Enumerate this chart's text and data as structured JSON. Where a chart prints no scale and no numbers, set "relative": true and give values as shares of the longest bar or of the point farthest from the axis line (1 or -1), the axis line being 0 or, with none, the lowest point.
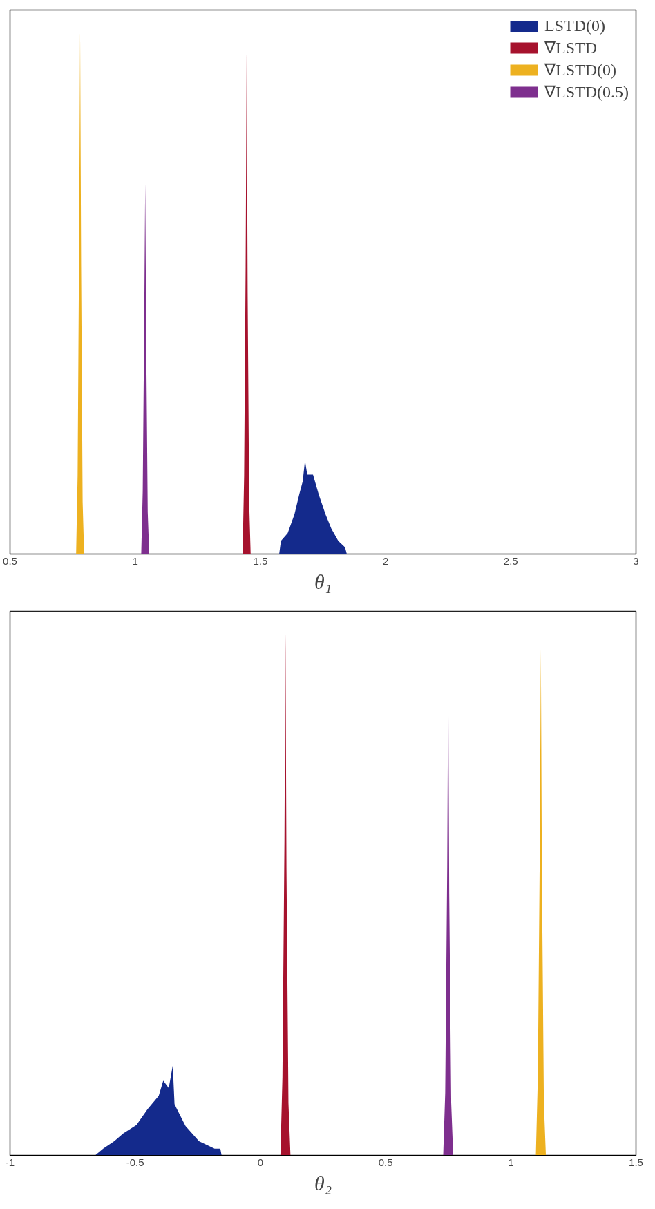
{
  "chart_data": [
    {
      "type": "area",
      "relative": true,
      "xlabel": "θ₁",
      "xlim": [
        0.5,
        3
      ],
      "xticks": [
        0.5,
        1,
        1.5,
        2,
        2.5,
        3
      ],
      "tick_labels": "x",
      "legend": "top right",
      "grid": false,
      "series": [
        {
          "name": "LSTD(0)",
          "color": "#142a8c",
          "x": [
            1.575,
            1.582,
            1.609,
            1.636,
            1.655,
            1.669,
            1.678,
            1.687,
            1.71,
            1.733,
            1.76,
            1.783,
            1.811,
            1.838,
            1.845
          ],
          "values": [
            0,
            0.025,
            0.04,
            0.076,
            0.114,
            0.139,
            0.179,
            0.152,
            0.152,
            0.114,
            0.076,
            0.049,
            0.025,
            0.013,
            0
          ]
        },
        {
          "name": "∇LSTD",
          "color": "#a6122d",
          "x": [
            1.429,
            1.435,
            1.441,
            1.445,
            1.449,
            1.455,
            1.461
          ],
          "values": [
            0,
            0.15,
            0.55,
            0.96,
            0.5,
            0.1,
            0
          ]
        },
        {
          "name": "∇LSTD(0)",
          "color": "#edb120",
          "x": [
            0.764,
            0.77,
            0.776,
            0.78,
            0.784,
            0.79,
            0.796
          ],
          "values": [
            0,
            0.15,
            0.6,
            1,
            0.55,
            0.1,
            0
          ]
        },
        {
          "name": "∇LSTD(0.5)",
          "color": "#7e2f8e",
          "x": [
            1.024,
            1.03,
            1.036,
            1.04,
            1.044,
            1.05,
            1.056
          ],
          "values": [
            0,
            0.12,
            0.45,
            0.71,
            0.4,
            0.08,
            0
          ]
        }
      ]
    },
    {
      "type": "area",
      "relative": true,
      "xlabel": "θ₂",
      "xlim": [
        -1,
        1.5
      ],
      "xticks": [
        -1,
        -0.5,
        0,
        0.5,
        1,
        1.5
      ],
      "tick_labels": "x",
      "grid": false,
      "series": [
        {
          "color": "#142a8c",
          "x": [
            -0.66,
            -0.628,
            -0.584,
            -0.548,
            -0.495,
            -0.45,
            -0.406,
            -0.388,
            -0.366,
            -0.35,
            -0.343,
            -0.299,
            -0.245,
            -0.183,
            -0.16,
            -0.155
          ],
          "values": [
            0,
            0.013,
            0.027,
            0.042,
            0.058,
            0.089,
            0.114,
            0.143,
            0.129,
            0.172,
            0.098,
            0.056,
            0.027,
            0.013,
            0.013,
            0
          ]
        },
        {
          "color": "#a6122d",
          "x": [
            0.08,
            0.088,
            0.096,
            0.1,
            0.104,
            0.112,
            0.12
          ],
          "values": [
            0,
            0.15,
            0.6,
            1,
            0.55,
            0.1,
            0
          ]
        },
        {
          "color": "#7e2f8e",
          "x": [
            0.73,
            0.738,
            0.746,
            0.75,
            0.754,
            0.762,
            0.77
          ],
          "values": [
            0,
            0.12,
            0.55,
            0.93,
            0.5,
            0.1,
            0
          ]
        },
        {
          "color": "#edb120",
          "x": [
            1.1,
            1.108,
            1.116,
            1.12,
            1.124,
            1.132,
            1.14
          ],
          "values": [
            0,
            0.15,
            0.6,
            0.97,
            0.55,
            0.1,
            0
          ]
        }
      ]
    }
  ]
}
